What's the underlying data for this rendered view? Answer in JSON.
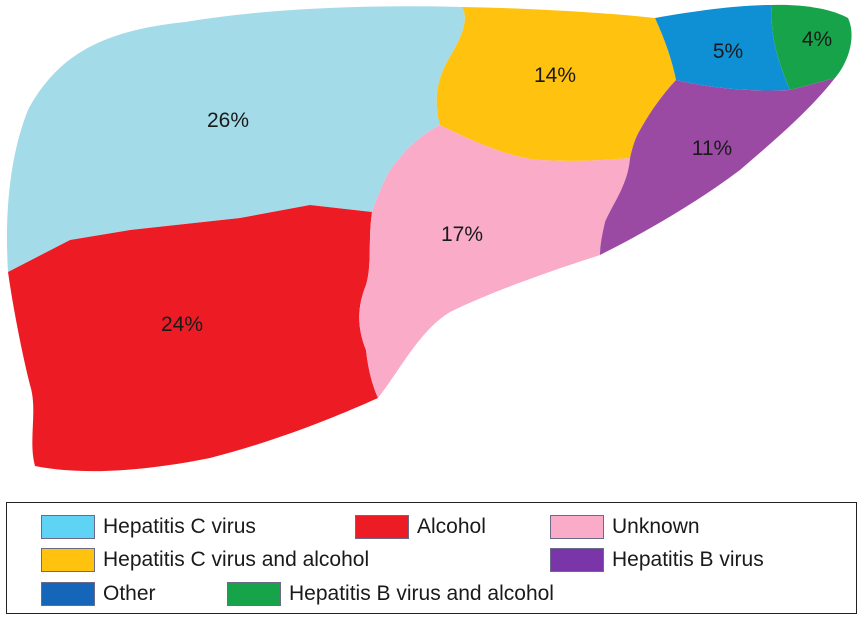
{
  "chart_data": {
    "type": "pie",
    "categories": [
      "Hepatitis C virus",
      "Alcohol",
      "Unknown",
      "Hepatitis C virus and alcohol",
      "Hepatitis B virus",
      "Other",
      "Hepatitis B virus and alcohol"
    ],
    "values": [
      26,
      24,
      17,
      14,
      11,
      5,
      4
    ],
    "value_labels": [
      "26%",
      "24%",
      "17%",
      "14%",
      "11%",
      "5%",
      "4%"
    ],
    "colors": [
      "#a3dbe9",
      "#ed1c24",
      "#f9abc8",
      "#fec20f",
      "#9b4aa4",
      "#0f8fd4",
      "#16a34a"
    ],
    "legend": {
      "placement": "bottom",
      "entries": [
        {
          "label": "Hepatitis C virus",
          "color": "#5fd3f3"
        },
        {
          "label": "Alcohol",
          "color": "#ed1c24"
        },
        {
          "label": "Unknown",
          "color": "#f9abc8"
        },
        {
          "label": "Hepatitis C virus and alcohol",
          "color": "#fec20f"
        },
        {
          "label": "Hepatitis B virus",
          "color": "#7a35a8"
        },
        {
          "label": "Other",
          "color": "#1565b8"
        },
        {
          "label": "Hepatitis B virus and alcohol",
          "color": "#16a34a"
        }
      ]
    }
  }
}
